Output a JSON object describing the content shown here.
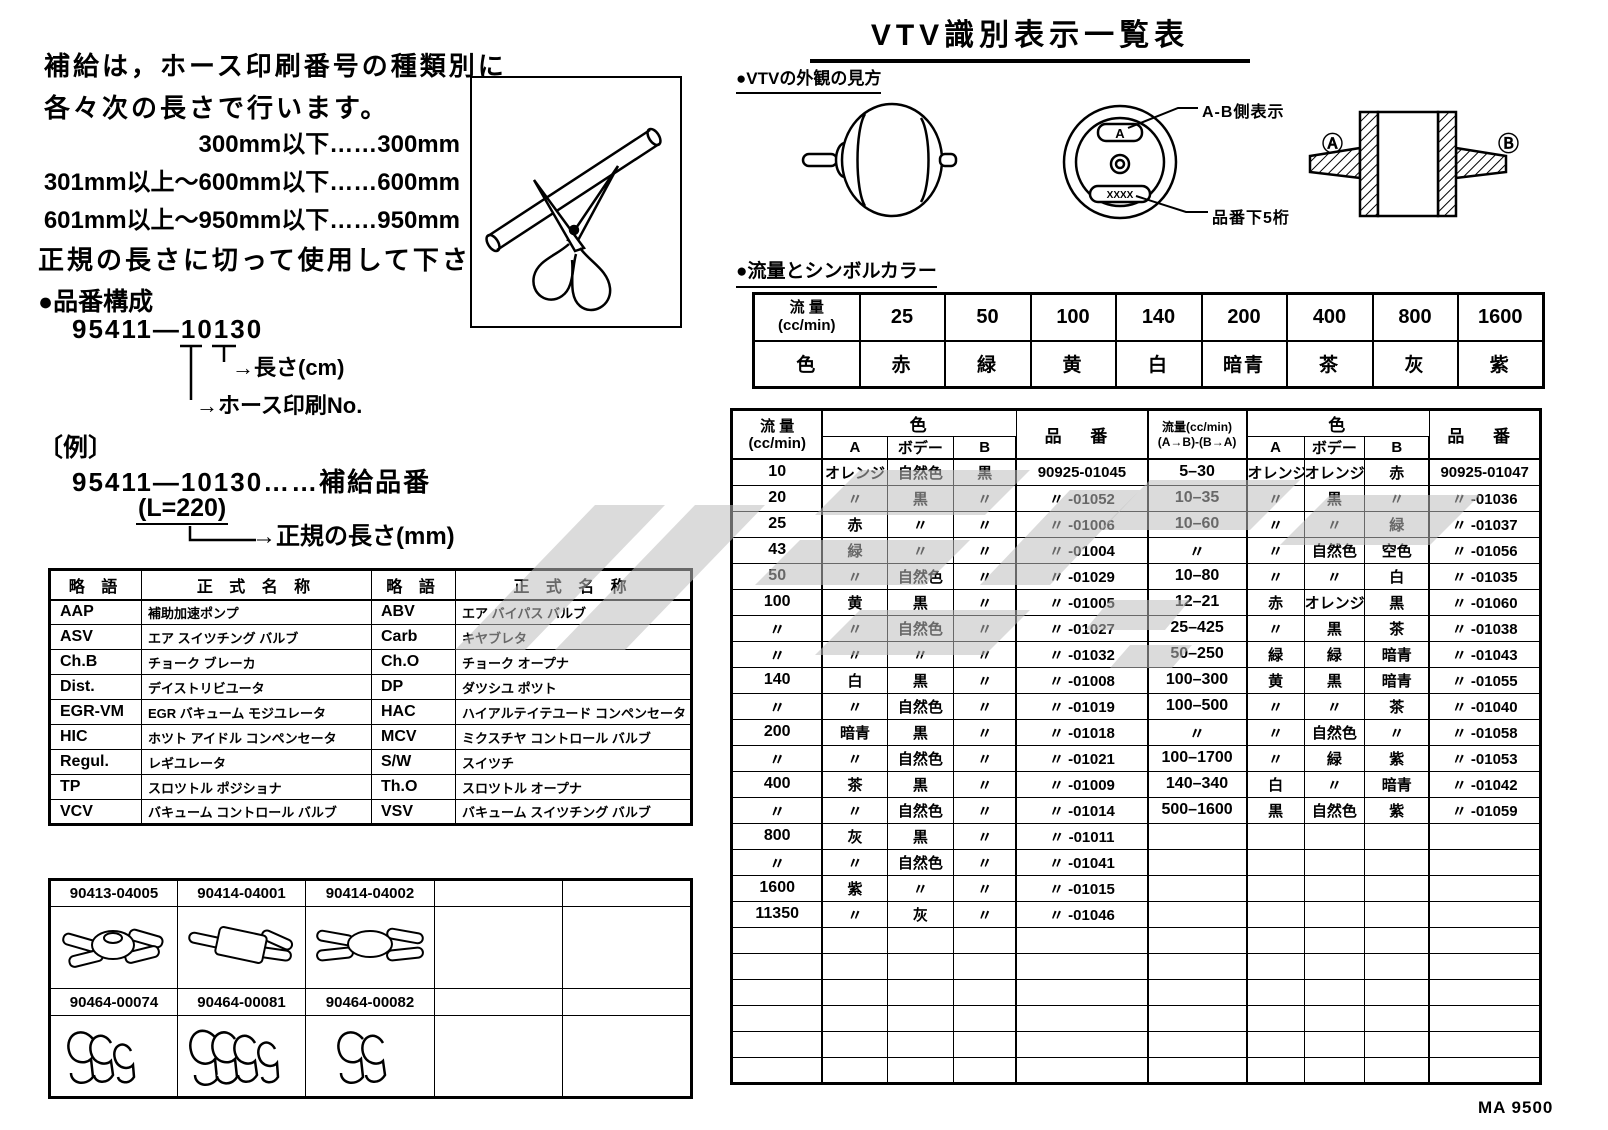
{
  "page": {
    "title": "VTV識別表示一覧表",
    "footer_code": "MA 9500"
  },
  "intro": {
    "line1": "補給は，ホース印刷番号の種類別に",
    "line2": "各々次の長さで行います。",
    "rule1": "300mm以下……300mm",
    "rule2": "301mm以上～600mm以下……600mm",
    "rule3": "601mm以上～950mm以下……950mm",
    "line3": "正規の長さに切って使用して下さい。"
  },
  "part_structure": {
    "heading": "●品番構成",
    "number": "95411—10130",
    "label_length": "→長さ(cm)",
    "label_print_no": "→ホース印刷No.",
    "example_heading": "〔例〕",
    "example_number": "95411—10130……補給品番",
    "example_l": "(L=220)",
    "example_label": "→正規の長さ(mm)"
  },
  "appearance": {
    "heading": "●VTVの外観の見方",
    "label_ab": "A-B側表示",
    "label_digits": "品番下5桁",
    "stamp_a": "A",
    "stamp_x": "X X X X",
    "label_a_circle": "Ⓐ",
    "label_b_circle": "Ⓑ"
  },
  "color_table": {
    "heading": "●流量とシンボルカラー",
    "flow_label_top": "流 量",
    "flow_label_bottom": "(cc/min)",
    "color_label": "色",
    "flows": [
      "25",
      "50",
      "100",
      "140",
      "200",
      "400",
      "800",
      "1600"
    ],
    "colors": [
      "赤",
      "緑",
      "黄",
      "白",
      "暗青",
      "茶",
      "灰",
      "紫"
    ]
  },
  "abbr_table": {
    "headers": [
      "略 語",
      "正 式 名 称",
      "略 語",
      "正 式 名 称"
    ],
    "rows": [
      [
        "AAP",
        "補助加速ポンプ",
        "ABV",
        "エア バイパス バルブ"
      ],
      [
        "ASV",
        "エア スイツチング バルブ",
        "Carb",
        "キヤブレタ"
      ],
      [
        "Ch.B",
        "チョーク ブレーカ",
        "Ch.O",
        "チョーク オープナ"
      ],
      [
        "Dist.",
        "デイストリビユータ",
        "DP",
        "ダツシユ ポツト"
      ],
      [
        "EGR-VM",
        "EGR バキューム モジユレータ",
        "HAC",
        "ハイアルテイテユード コンペンセータ"
      ],
      [
        "HIC",
        "ホツト アイドル コンペンセータ",
        "MCV",
        "ミクスチヤ コントロール バルブ"
      ],
      [
        "Regul.",
        "レギユレータ",
        "S/W",
        "スイツチ"
      ],
      [
        "TP",
        "スロツトル ポジショナ",
        "Th.O",
        "スロツトル オープナ"
      ],
      [
        "VCV",
        "バキューム コントロール バルブ",
        "VSV",
        "バキューム スイツチング バルブ"
      ]
    ]
  },
  "parts_table": {
    "row1_labels": [
      "90413-04005",
      "90414-04001",
      "90414-04002",
      "",
      ""
    ],
    "row2_labels": [
      "90464-00074",
      "90464-00081",
      "90464-00082",
      "",
      ""
    ]
  },
  "main_table": {
    "header": {
      "flow_left_top": "流 量",
      "flow_left_bottom": "(cc/min)",
      "color": "色",
      "col_a": "A",
      "col_body": "ボデー",
      "col_b": "B",
      "part": "品 番",
      "flow_right_top": "流量(cc/min)",
      "flow_right_bottom": "(A→B)-(B→A)"
    },
    "total_rows": 24,
    "left_rows": [
      [
        "10",
        "オレンジ",
        "自然色",
        "黒",
        "90925-01045"
      ],
      [
        "20",
        "〃",
        "黒",
        "〃",
        "〃  -01052"
      ],
      [
        "25",
        "赤",
        "〃",
        "〃",
        "〃  -01006"
      ],
      [
        "43",
        "緑",
        "〃",
        "〃",
        "〃  -01004"
      ],
      [
        "50",
        "〃",
        "自然色",
        "〃",
        "〃  -01029"
      ],
      [
        "100",
        "黄",
        "黒",
        "〃",
        "〃  -01005"
      ],
      [
        "〃",
        "〃",
        "自然色",
        "〃",
        "〃  -01027"
      ],
      [
        "〃",
        "〃",
        "〃",
        "〃",
        "〃  -01032"
      ],
      [
        "140",
        "白",
        "黒",
        "〃",
        "〃  -01008"
      ],
      [
        "〃",
        "〃",
        "自然色",
        "〃",
        "〃  -01019"
      ],
      [
        "200",
        "暗青",
        "黒",
        "〃",
        "〃  -01018"
      ],
      [
        "〃",
        "〃",
        "自然色",
        "〃",
        "〃  -01021"
      ],
      [
        "400",
        "茶",
        "黒",
        "〃",
        "〃  -01009"
      ],
      [
        "〃",
        "〃",
        "自然色",
        "〃",
        "〃  -01014"
      ],
      [
        "800",
        "灰",
        "黒",
        "〃",
        "〃  -01011"
      ],
      [
        "〃",
        "〃",
        "自然色",
        "〃",
        "〃  -01041"
      ],
      [
        "1600",
        "紫",
        "〃",
        "〃",
        "〃  -01015"
      ],
      [
        "11350",
        "〃",
        "灰",
        "〃",
        "〃  -01046"
      ]
    ],
    "right_rows": [
      [
        "5–30",
        "オレンジ",
        "オレンジ",
        "赤",
        "90925-01047"
      ],
      [
        "10–35",
        "〃",
        "黒",
        "〃",
        "〃  -01036"
      ],
      [
        "10–60",
        "〃",
        "〃",
        "緑",
        "〃  -01037"
      ],
      [
        "〃",
        "〃",
        "自然色",
        "空色",
        "〃  -01056"
      ],
      [
        "10–80",
        "〃",
        "〃",
        "白",
        "〃  -01035"
      ],
      [
        "12–21",
        "赤",
        "オレンジ",
        "黒",
        "〃  -01060"
      ],
      [
        "25–425",
        "〃",
        "黒",
        "茶",
        "〃  -01038"
      ],
      [
        "50–250",
        "緑",
        "緑",
        "暗青",
        "〃  -01043"
      ],
      [
        "100–300",
        "黄",
        "黒",
        "暗青",
        "〃  -01055"
      ],
      [
        "100–500",
        "〃",
        "〃",
        "茶",
        "〃  -01040"
      ],
      [
        "〃",
        "〃",
        "自然色",
        "〃",
        "〃  -01058"
      ],
      [
        "100–1700",
        "〃",
        "緑",
        "紫",
        "〃  -01053"
      ],
      [
        "140–340",
        "白",
        "〃",
        "暗青",
        "〃  -01042"
      ],
      [
        "500–1600",
        "黒",
        "自然色",
        "紫",
        "〃  -01059"
      ]
    ]
  }
}
